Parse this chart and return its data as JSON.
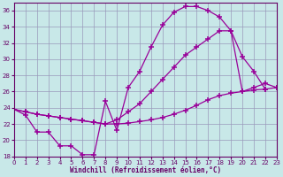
{
  "xlabel": "Windchill (Refroidissement éolien,°C)",
  "xlim": [
    0,
    23
  ],
  "ylim": [
    18,
    37
  ],
  "yticks": [
    18,
    20,
    22,
    24,
    26,
    28,
    30,
    32,
    34,
    36
  ],
  "xticks": [
    0,
    1,
    2,
    3,
    4,
    5,
    6,
    7,
    8,
    9,
    10,
    11,
    12,
    13,
    14,
    15,
    16,
    17,
    18,
    19,
    20,
    21,
    22,
    23
  ],
  "bg_color": "#c8e8e8",
  "line_color": "#990099",
  "grid_color": "#9999bb",
  "curve1_x": [
    0,
    1,
    2,
    3,
    4,
    5,
    6,
    7,
    8,
    9,
    10,
    11,
    12,
    13,
    14,
    15,
    16,
    17,
    18,
    19,
    20,
    21,
    22
  ],
  "curve1_y": [
    23.8,
    23.1,
    21.0,
    21.0,
    19.3,
    19.3,
    18.2,
    18.2,
    24.8,
    21.2,
    26.5,
    28.5,
    31.5,
    34.2,
    35.8,
    36.5,
    36.5,
    36.0,
    35.2,
    33.5,
    30.3,
    28.5,
    26.3
  ],
  "curve2_x": [
    0,
    1,
    2,
    3,
    4,
    5,
    6,
    7,
    8,
    9,
    10,
    11,
    12,
    13,
    14,
    15,
    16,
    17,
    18,
    19,
    20,
    21,
    22,
    23
  ],
  "curve2_y": [
    23.8,
    23.5,
    23.2,
    23.0,
    22.8,
    22.6,
    22.4,
    22.2,
    22.0,
    22.0,
    22.1,
    22.3,
    22.5,
    22.8,
    23.2,
    23.7,
    24.3,
    25.0,
    25.5,
    25.8,
    26.0,
    26.2,
    26.3,
    26.5
  ],
  "curve3_x": [
    0,
    1,
    2,
    3,
    4,
    5,
    6,
    7,
    8,
    9,
    10,
    11,
    12,
    13,
    14,
    15,
    16,
    17,
    18,
    19,
    20,
    21,
    22,
    23
  ],
  "curve3_y": [
    23.8,
    23.5,
    23.2,
    23.0,
    22.8,
    22.6,
    22.4,
    22.2,
    22.0,
    22.5,
    23.5,
    24.5,
    26.0,
    27.5,
    29.0,
    30.5,
    31.5,
    32.5,
    33.5,
    33.5,
    26.0,
    26.5,
    27.0,
    26.5
  ]
}
